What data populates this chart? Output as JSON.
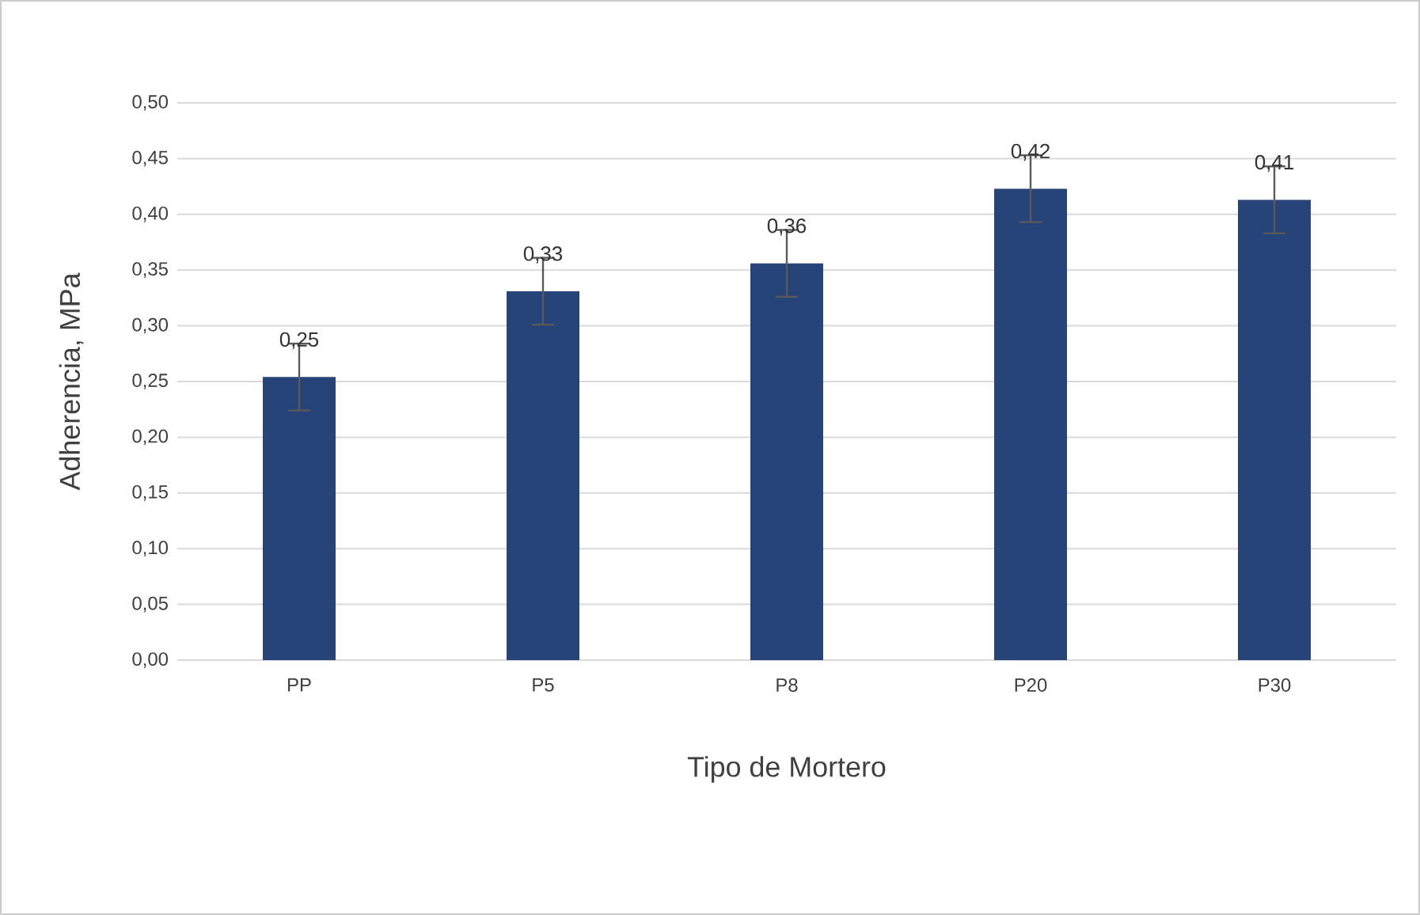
{
  "chart_data": {
    "type": "bar",
    "xlabel": "Tipo de Mortero",
    "ylabel": "Adherencia, MPa",
    "categories": [
      "PP",
      "P5",
      "P8",
      "P20",
      "P30"
    ],
    "values": [
      0.254,
      0.331,
      0.356,
      0.423,
      0.413
    ],
    "errors": [
      0.03,
      0.03,
      0.03,
      0.03,
      0.03
    ],
    "value_labels": [
      "0,25",
      "0,33",
      "0,36",
      "0,42",
      "0,41"
    ],
    "color": "#264478",
    "ylim": [
      0,
      0.5
    ],
    "yticks": [
      {
        "value": 0,
        "label": "0,00"
      },
      {
        "value": 0.05,
        "label": "0,05"
      },
      {
        "value": 0.1,
        "label": "0,10"
      },
      {
        "value": 0.15,
        "label": "0,15"
      },
      {
        "value": 0.2,
        "label": "0,20"
      },
      {
        "value": 0.25,
        "label": "0,25"
      },
      {
        "value": 0.3,
        "label": "0,30"
      },
      {
        "value": 0.35,
        "label": "0,35"
      },
      {
        "value": 0.4,
        "label": "0,40"
      },
      {
        "value": 0.45,
        "label": "0,45"
      },
      {
        "value": 0.5,
        "label": "0,50"
      }
    ],
    "grid": "y"
  }
}
